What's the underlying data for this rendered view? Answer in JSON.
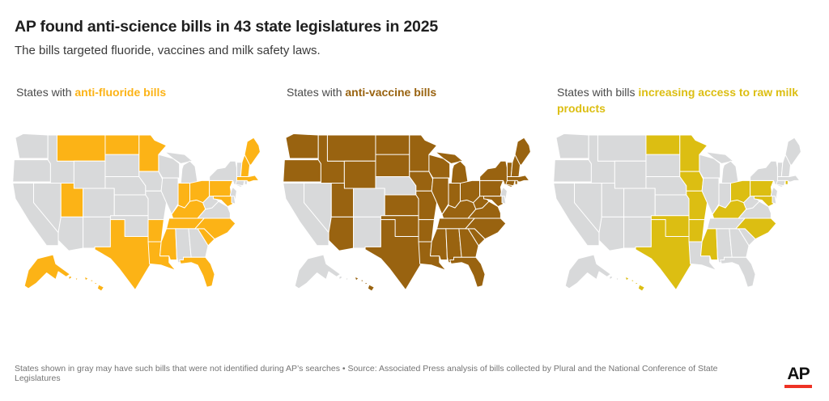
{
  "header": {
    "title": "AP found anti-science bills in 43 state legislatures in 2025",
    "subtitle": "The bills targeted fluoride, vaccines and milk safety laws."
  },
  "map_base_color": "#D8D9DA",
  "map_border_color": "#FFFFFF",
  "chart_data": [
    {
      "type": "heatmap",
      "subtype": "us-state-choropleth",
      "label_prefix": "States with ",
      "label_highlight": "anti-fluoride bills",
      "highlight_color": "#FCB316",
      "non_highlight_color": "#D8D9DA",
      "highlighted_states": [
        "AK",
        "HI",
        "MT",
        "ND",
        "MN",
        "UT",
        "TX",
        "AR",
        "LA",
        "MS",
        "TN",
        "KY",
        "IN",
        "OH",
        "PA",
        "MD",
        "NC",
        "SC",
        "FL",
        "ME",
        "NH",
        "MA"
      ]
    },
    {
      "type": "heatmap",
      "subtype": "us-state-choropleth",
      "label_prefix": "States with ",
      "label_highlight": "anti-vaccine bills",
      "highlight_color": "#996310",
      "non_highlight_color": "#D8D9DA",
      "highlighted_states": [
        "WA",
        "OR",
        "ID",
        "MT",
        "WY",
        "UT",
        "AZ",
        "ND",
        "SD",
        "KS",
        "OK",
        "TX",
        "MN",
        "IA",
        "MO",
        "AR",
        "LA",
        "WI",
        "IL",
        "MI",
        "IN",
        "OH",
        "KY",
        "TN",
        "MS",
        "AL",
        "GA",
        "FL",
        "SC",
        "NC",
        "VA",
        "WV",
        "PA",
        "NY",
        "VT",
        "NH",
        "ME",
        "MA",
        "CT",
        "RI",
        "MD",
        "HI"
      ]
    },
    {
      "type": "heatmap",
      "subtype": "us-state-choropleth",
      "label_prefix": "States with bills ",
      "label_highlight": "increasing access to raw milk products",
      "highlight_color": "#DCBE12",
      "non_highlight_color": "#D8D9DA",
      "highlighted_states": [
        "ND",
        "MN",
        "IA",
        "MO",
        "OK",
        "TX",
        "AR",
        "MS",
        "OH",
        "KY",
        "PA",
        "MD",
        "NC",
        "RI",
        "HI"
      ]
    }
  ],
  "footer": {
    "note": "States shown in gray may have such bills that were not identified during AP’s searches • Source: Associated Press analysis of bills collected by Plural and the National Conference of State Legislatures",
    "logo_text": "AP",
    "logo_bar_color": "#EE3224"
  }
}
